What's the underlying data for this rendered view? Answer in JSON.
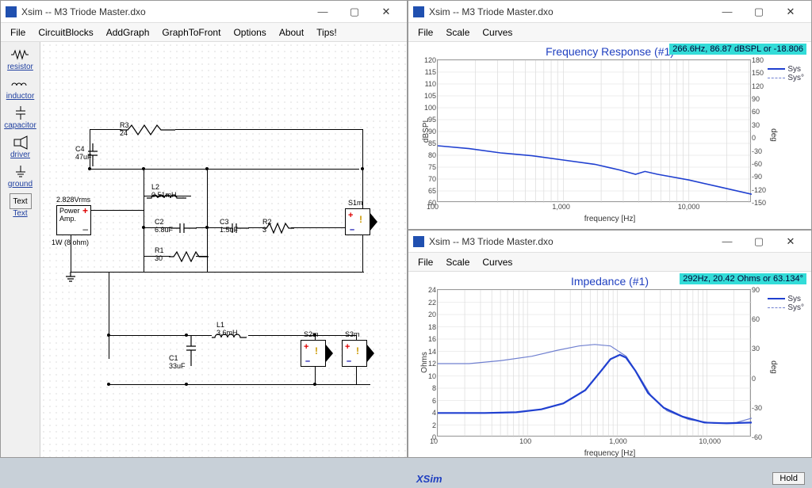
{
  "main": {
    "title": "Xsim -- M3 Triode Master.dxo",
    "menus": [
      "File",
      "CircuitBlocks",
      "AddGraph",
      "GraphToFront",
      "Options",
      "About",
      "Tips!"
    ],
    "tools": [
      {
        "name": "resistor",
        "label": "resistor"
      },
      {
        "name": "inductor",
        "label": "inductor"
      },
      {
        "name": "capacitor",
        "label": "capacitor"
      },
      {
        "name": "driver",
        "label": "driver"
      },
      {
        "name": "ground",
        "label": "ground"
      },
      {
        "name": "text",
        "label": "Text"
      },
      {
        "name": "text2",
        "label": "Text"
      }
    ],
    "amp": {
      "v": "2.828Vrms",
      "line1": "Power",
      "line2": "Amp.",
      "foot": "1W (8 ohm)"
    },
    "components": {
      "R3": {
        "name": "R3",
        "val": "24"
      },
      "C4": {
        "name": "C4",
        "val": "47uF"
      },
      "L2": {
        "name": "L2",
        "val": "0.51mH"
      },
      "C2": {
        "name": "C2",
        "val": "6.8uF"
      },
      "R1": {
        "name": "R1",
        "val": "30"
      },
      "C3": {
        "name": "C3",
        "val": "1.5uF"
      },
      "R2": {
        "name": "R2",
        "val": "3"
      },
      "L1": {
        "name": "L1",
        "val": "3.6mH"
      },
      "C1": {
        "name": "C1",
        "val": "33uF"
      },
      "S1": "S1m",
      "S2": "S2m",
      "S3": "S3m"
    }
  },
  "freq": {
    "title": "Xsim -- M3 Triode Master.dxo",
    "menus": [
      "File",
      "Scale",
      "Curves"
    ],
    "heading": "Frequency Response (#1)",
    "readout": "266.6Hz, 86.87 dBSPL or -18.806",
    "ylabel_l": "dBSPL",
    "ylabel_r": "deg",
    "xlabel": "frequency [Hz]",
    "yl": [
      120,
      115,
      110,
      105,
      100,
      95,
      90,
      85,
      80,
      75,
      70,
      65,
      60
    ],
    "yr": [
      180,
      150,
      120,
      90,
      60,
      30,
      0,
      -30,
      -60,
      -90,
      -120,
      -150
    ],
    "xl": [
      "100",
      "1,000",
      "10,000"
    ],
    "legend": [
      "Sys",
      "Sys°"
    ],
    "brand": "XSim",
    "hold": "Hold",
    "trace_color": "#2040d0",
    "trace": [
      [
        0,
        0.6
      ],
      [
        0.1,
        0.62
      ],
      [
        0.2,
        0.65
      ],
      [
        0.3,
        0.67
      ],
      [
        0.4,
        0.7
      ],
      [
        0.5,
        0.73
      ],
      [
        0.58,
        0.77
      ],
      [
        0.63,
        0.8
      ],
      [
        0.66,
        0.78
      ],
      [
        0.7,
        0.8
      ],
      [
        0.8,
        0.84
      ],
      [
        0.9,
        0.89
      ],
      [
        1.0,
        0.94
      ]
    ]
  },
  "imp": {
    "title": "Xsim -- M3 Triode Master.dxo",
    "menus": [
      "File",
      "Scale",
      "Curves"
    ],
    "heading": "Impedance (#1)",
    "readout": "292Hz, 20.42 Ohms or 63.134°",
    "ylabel_l": "Ohms",
    "ylabel_r": "deg",
    "xlabel": "frequency [Hz]",
    "yl": [
      24,
      22,
      20,
      18,
      16,
      14,
      12,
      10,
      8,
      6,
      4,
      2,
      0
    ],
    "yr": [
      90,
      60,
      30,
      0,
      -30,
      -60
    ],
    "xl": [
      "10",
      "100",
      "1,000",
      "10,000"
    ],
    "legend": [
      "Sys",
      "Sys°"
    ],
    "brand": "XSim",
    "hold": "Hold",
    "trace_color": "#2040d0",
    "trace2_color": "#7080d0",
    "trace": [
      [
        0,
        0.835
      ],
      [
        0.15,
        0.835
      ],
      [
        0.25,
        0.83
      ],
      [
        0.33,
        0.81
      ],
      [
        0.4,
        0.77
      ],
      [
        0.47,
        0.68
      ],
      [
        0.52,
        0.55
      ],
      [
        0.55,
        0.47
      ],
      [
        0.58,
        0.44
      ],
      [
        0.6,
        0.46
      ],
      [
        0.63,
        0.55
      ],
      [
        0.67,
        0.7
      ],
      [
        0.72,
        0.8
      ],
      [
        0.78,
        0.86
      ],
      [
        0.85,
        0.9
      ],
      [
        0.92,
        0.905
      ],
      [
        1.0,
        0.9
      ]
    ],
    "trace2": [
      [
        0,
        0.5
      ],
      [
        0.1,
        0.5
      ],
      [
        0.2,
        0.48
      ],
      [
        0.3,
        0.45
      ],
      [
        0.38,
        0.41
      ],
      [
        0.45,
        0.38
      ],
      [
        0.5,
        0.37
      ],
      [
        0.55,
        0.38
      ],
      [
        0.6,
        0.45
      ],
      [
        0.64,
        0.58
      ],
      [
        0.68,
        0.72
      ],
      [
        0.73,
        0.82
      ],
      [
        0.8,
        0.88
      ],
      [
        0.88,
        0.905
      ],
      [
        0.95,
        0.9
      ],
      [
        1.0,
        0.87
      ]
    ]
  }
}
